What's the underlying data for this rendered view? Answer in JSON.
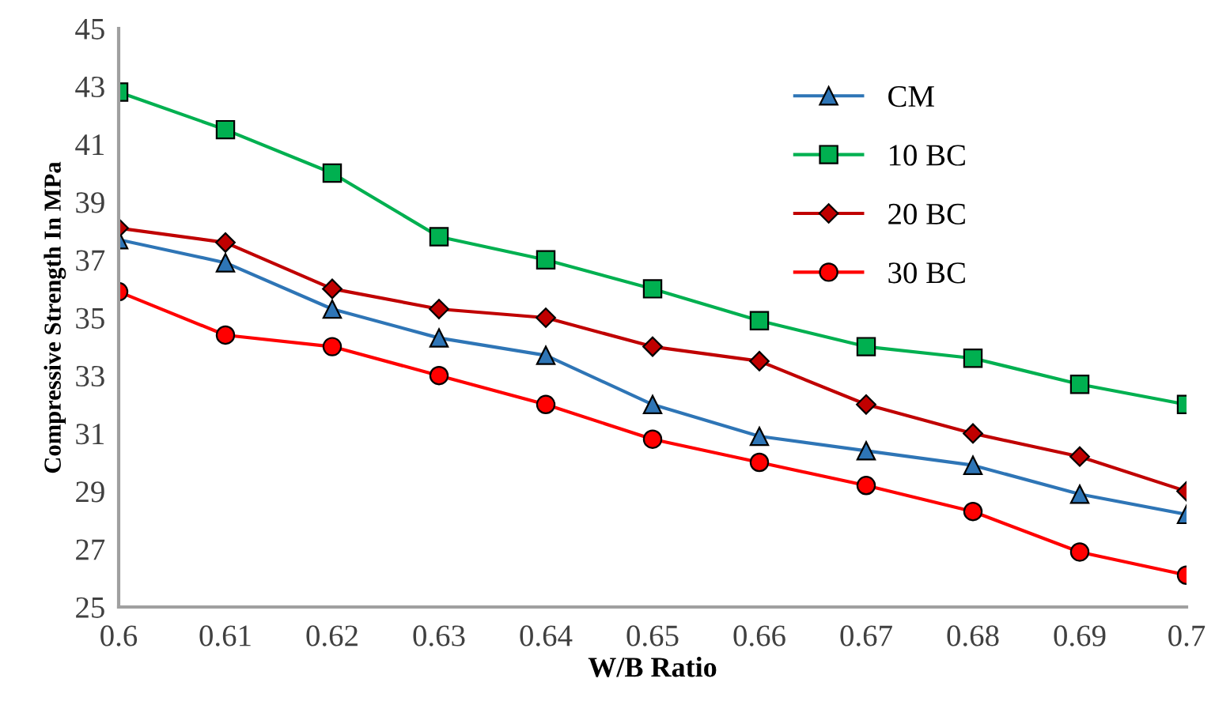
{
  "chart_data": {
    "type": "line",
    "xlabel": "W/B Ratio",
    "ylabel": "Compressive Strength In MPa",
    "x": [
      0.6,
      0.61,
      0.62,
      0.63,
      0.64,
      0.65,
      0.66,
      0.67,
      0.68,
      0.69,
      0.7
    ],
    "series": [
      {
        "name": "CM",
        "color": "#2e75b6",
        "marker": "triangle",
        "values": [
          37.7,
          36.9,
          35.3,
          34.3,
          33.7,
          32.0,
          30.9,
          30.4,
          29.9,
          28.9,
          28.2
        ]
      },
      {
        "name": "10 BC",
        "color": "#00b050",
        "marker": "square",
        "values": [
          42.8,
          41.5,
          40.0,
          37.8,
          37.0,
          36.0,
          34.9,
          34.0,
          33.6,
          32.7,
          32.0
        ]
      },
      {
        "name": "20 BC",
        "color": "#c00000",
        "marker": "diamond",
        "values": [
          38.1,
          37.6,
          36.0,
          35.3,
          35.0,
          34.0,
          33.5,
          32.0,
          31.0,
          30.2,
          29.0
        ]
      },
      {
        "name": "30 BC",
        "color": "#ff0000",
        "marker": "circle",
        "values": [
          35.9,
          34.4,
          34.0,
          33.0,
          32.0,
          30.8,
          30.0,
          29.2,
          28.3,
          26.9,
          26.1
        ]
      }
    ],
    "xlim": [
      0.6,
      0.7
    ],
    "xticks": [
      0.6,
      0.61,
      0.62,
      0.63,
      0.64,
      0.65,
      0.66,
      0.67,
      0.68,
      0.69,
      0.7
    ],
    "ylim": [
      25,
      45
    ],
    "yticks": [
      25,
      27,
      29,
      31,
      33,
      35,
      37,
      39,
      41,
      43,
      45
    ],
    "grid": false,
    "legend": "top right",
    "line_style": "solid"
  }
}
